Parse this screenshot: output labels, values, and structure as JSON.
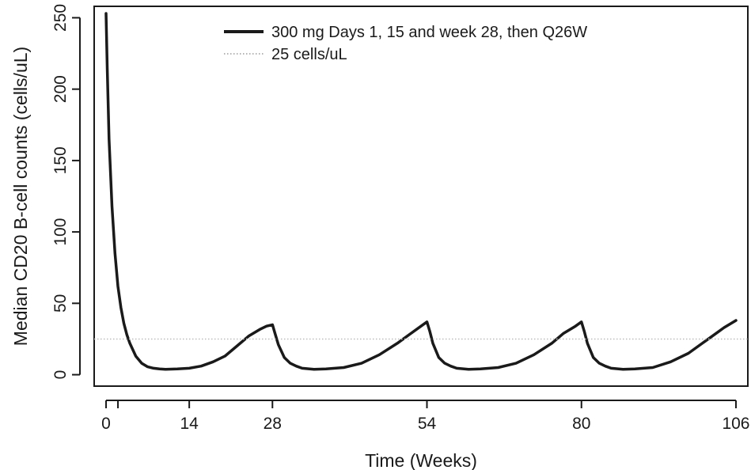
{
  "chart_data": {
    "type": "line",
    "title": "",
    "xlabel": "Time (Weeks)",
    "ylabel": "Median CD20 B-cell counts (cells/uL)",
    "xlim": [
      -2,
      108
    ],
    "ylim": [
      -8,
      258
    ],
    "x_ticks": [
      0,
      14,
      28,
      54,
      80,
      106
    ],
    "x_tick_labels": [
      "0",
      "14",
      "28",
      "54",
      "80",
      "106"
    ],
    "x_minor_ticks": [
      2
    ],
    "y_ticks": [
      0,
      50,
      100,
      150,
      200,
      250
    ],
    "y_tick_labels": [
      "0",
      "50",
      "100",
      "150",
      "200",
      "250"
    ],
    "grid": false,
    "legend_position": "top",
    "series": [
      {
        "name": "300 mg Days 1, 15 and week 28, then Q26W",
        "style": "solid",
        "color": "#1a1a1a",
        "x": [
          0,
          0.2,
          0.5,
          1,
          1.5,
          2,
          2.5,
          3,
          3.5,
          4,
          5,
          6,
          7,
          8,
          9,
          10,
          12,
          14,
          16,
          18,
          20,
          22,
          24,
          26,
          27,
          28,
          28.5,
          29,
          30,
          31,
          32,
          33,
          35,
          37,
          40,
          43,
          46,
          49,
          51,
          53,
          54,
          54.5,
          55,
          56,
          57,
          58,
          59,
          61,
          63,
          66,
          69,
          72,
          75,
          77,
          79,
          80,
          80.5,
          81,
          82,
          83,
          84,
          85,
          87,
          89,
          92,
          95,
          98,
          101,
          103,
          104,
          106
        ],
        "y": [
          253,
          215,
          165,
          118,
          85,
          62,
          47,
          36,
          28,
          22,
          13,
          8,
          5.5,
          4.5,
          4,
          3.8,
          4,
          4.5,
          6,
          9,
          13,
          20,
          27,
          32,
          34,
          35,
          28,
          21,
          12,
          8,
          6,
          4.5,
          3.8,
          4,
          5,
          8,
          14,
          22,
          28,
          34,
          37,
          30,
          22,
          12,
          8,
          6,
          4.5,
          3.8,
          4,
          5,
          8,
          14,
          22,
          29,
          34,
          37,
          30,
          22,
          12,
          8,
          6,
          4.5,
          3.8,
          4,
          5,
          9,
          15,
          24,
          30,
          33,
          38
        ]
      },
      {
        "name": "25 cells/uL",
        "style": "dotted",
        "color": "#bdbdbd",
        "x": [
          -2,
          108
        ],
        "y": [
          25,
          25
        ]
      }
    ]
  }
}
